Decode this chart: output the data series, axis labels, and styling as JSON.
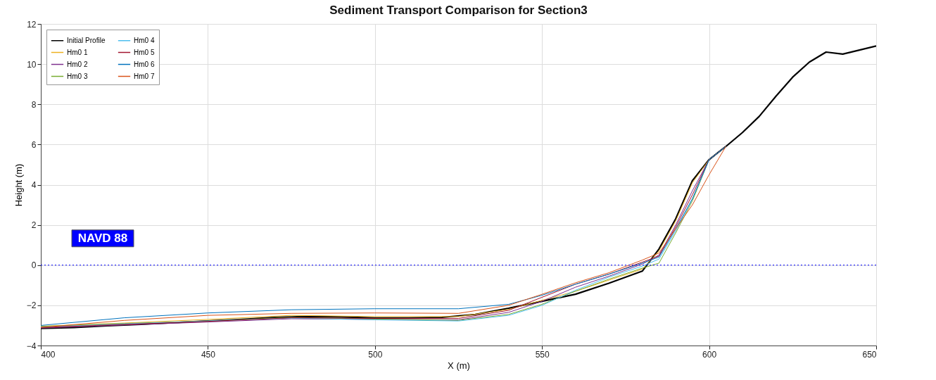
{
  "chart_data": {
    "type": "line",
    "title": "Sediment Transport Comparison for Section3",
    "xlabel": "X (m)",
    "ylabel": "Height (m)",
    "xlim": [
      400,
      650
    ],
    "ylim": [
      -4,
      12
    ],
    "xticks": [
      400,
      450,
      500,
      550,
      600,
      650
    ],
    "yticks": [
      -4,
      -2,
      0,
      2,
      4,
      6,
      8,
      10,
      12
    ],
    "grid": true,
    "legend": "top left",
    "line_style": "solid",
    "marker": "none",
    "ref_lines": [
      {
        "axis": "y",
        "value": 0,
        "label": "NAVD 88",
        "color": "#0000ff",
        "line_style": "dotted"
      }
    ],
    "series": [
      {
        "name": "Initial Profile",
        "color": "#000000",
        "x": [
          400,
          410,
          420,
          430,
          440,
          450,
          460,
          470,
          480,
          490,
          500,
          510,
          520,
          530,
          540,
          550,
          560,
          570,
          580,
          585,
          590,
          595,
          600,
          605,
          610,
          615,
          620,
          625,
          630,
          635,
          640,
          645,
          650
        ],
        "values": [
          -3.15,
          -3.1,
          -3.02,
          -2.95,
          -2.86,
          -2.78,
          -2.7,
          -2.6,
          -2.55,
          -2.58,
          -2.63,
          -2.63,
          -2.6,
          -2.45,
          -2.15,
          -1.8,
          -1.45,
          -0.9,
          -0.3,
          0.8,
          2.3,
          4.2,
          5.25,
          5.9,
          6.6,
          7.4,
          8.4,
          9.35,
          10.1,
          10.6,
          10.5,
          10.7,
          10.9
        ]
      },
      {
        "name": "Hm0 1",
        "color": "#edb120",
        "x": [
          400,
          425,
          450,
          475,
          500,
          525,
          540,
          550,
          560,
          570,
          580,
          585,
          590,
          595,
          600,
          605
        ],
        "values": [
          -3.04,
          -2.88,
          -2.7,
          -2.5,
          -2.56,
          -2.56,
          -2.2,
          -1.75,
          -1.3,
          -0.75,
          -0.2,
          0.7,
          2.2,
          4.1,
          5.25,
          5.9
        ]
      },
      {
        "name": "Hm0 2",
        "color": "#7e2f8e",
        "x": [
          400,
          425,
          450,
          475,
          500,
          525,
          540,
          550,
          560,
          570,
          580,
          585,
          590,
          595,
          600,
          605
        ],
        "values": [
          -3.13,
          -2.98,
          -2.83,
          -2.67,
          -2.7,
          -2.72,
          -2.35,
          -1.8,
          -1.1,
          -0.55,
          0.05,
          0.5,
          2.0,
          3.7,
          5.25,
          5.9
        ]
      },
      {
        "name": "Hm0 3",
        "color": "#77ac30",
        "x": [
          400,
          425,
          450,
          475,
          500,
          525,
          540,
          550,
          560,
          570,
          580,
          585,
          590,
          595,
          600,
          605
        ],
        "values": [
          -3.05,
          -2.9,
          -2.78,
          -2.6,
          -2.68,
          -2.75,
          -2.45,
          -1.95,
          -1.3,
          -0.7,
          -0.15,
          0.1,
          1.6,
          3.2,
          5.25,
          5.9
        ]
      },
      {
        "name": "Hm0 4",
        "color": "#4dbeee",
        "x": [
          400,
          425,
          450,
          475,
          500,
          525,
          540,
          550,
          560,
          570,
          580,
          585,
          590,
          595,
          600,
          605
        ],
        "values": [
          -3.08,
          -2.92,
          -2.78,
          -2.64,
          -2.72,
          -2.78,
          -2.5,
          -2.0,
          -1.25,
          -0.6,
          -0.05,
          0.3,
          1.7,
          3.3,
          5.25,
          5.9
        ]
      },
      {
        "name": "Hm0 5",
        "color": "#a2142f",
        "x": [
          400,
          425,
          450,
          475,
          500,
          525,
          540,
          550,
          560,
          570,
          580,
          585,
          590,
          595,
          600,
          605
        ],
        "values": [
          -3.1,
          -2.95,
          -2.8,
          -2.62,
          -2.65,
          -2.65,
          -2.25,
          -1.6,
          -0.95,
          -0.45,
          0.15,
          0.45,
          1.9,
          3.5,
          5.25,
          5.9
        ]
      },
      {
        "name": "Hm0 6",
        "color": "#0072bd",
        "x": [
          400,
          425,
          450,
          475,
          500,
          525,
          540,
          550,
          560,
          570,
          580,
          585,
          590,
          595,
          600,
          605
        ],
        "values": [
          -3.0,
          -2.62,
          -2.38,
          -2.22,
          -2.17,
          -2.17,
          -1.95,
          -1.5,
          -0.95,
          -0.45,
          0.1,
          0.4,
          1.8,
          3.3,
          5.25,
          5.9
        ]
      },
      {
        "name": "Hm0 7",
        "color": "#d95319",
        "x": [
          400,
          425,
          450,
          475,
          500,
          525,
          540,
          550,
          560,
          570,
          580,
          585,
          590,
          595,
          600,
          605
        ],
        "values": [
          -3.1,
          -2.75,
          -2.5,
          -2.4,
          -2.38,
          -2.4,
          -2.0,
          -1.45,
          -0.88,
          -0.38,
          0.25,
          0.6,
          1.8,
          3.0,
          4.5,
          5.9
        ]
      }
    ]
  }
}
